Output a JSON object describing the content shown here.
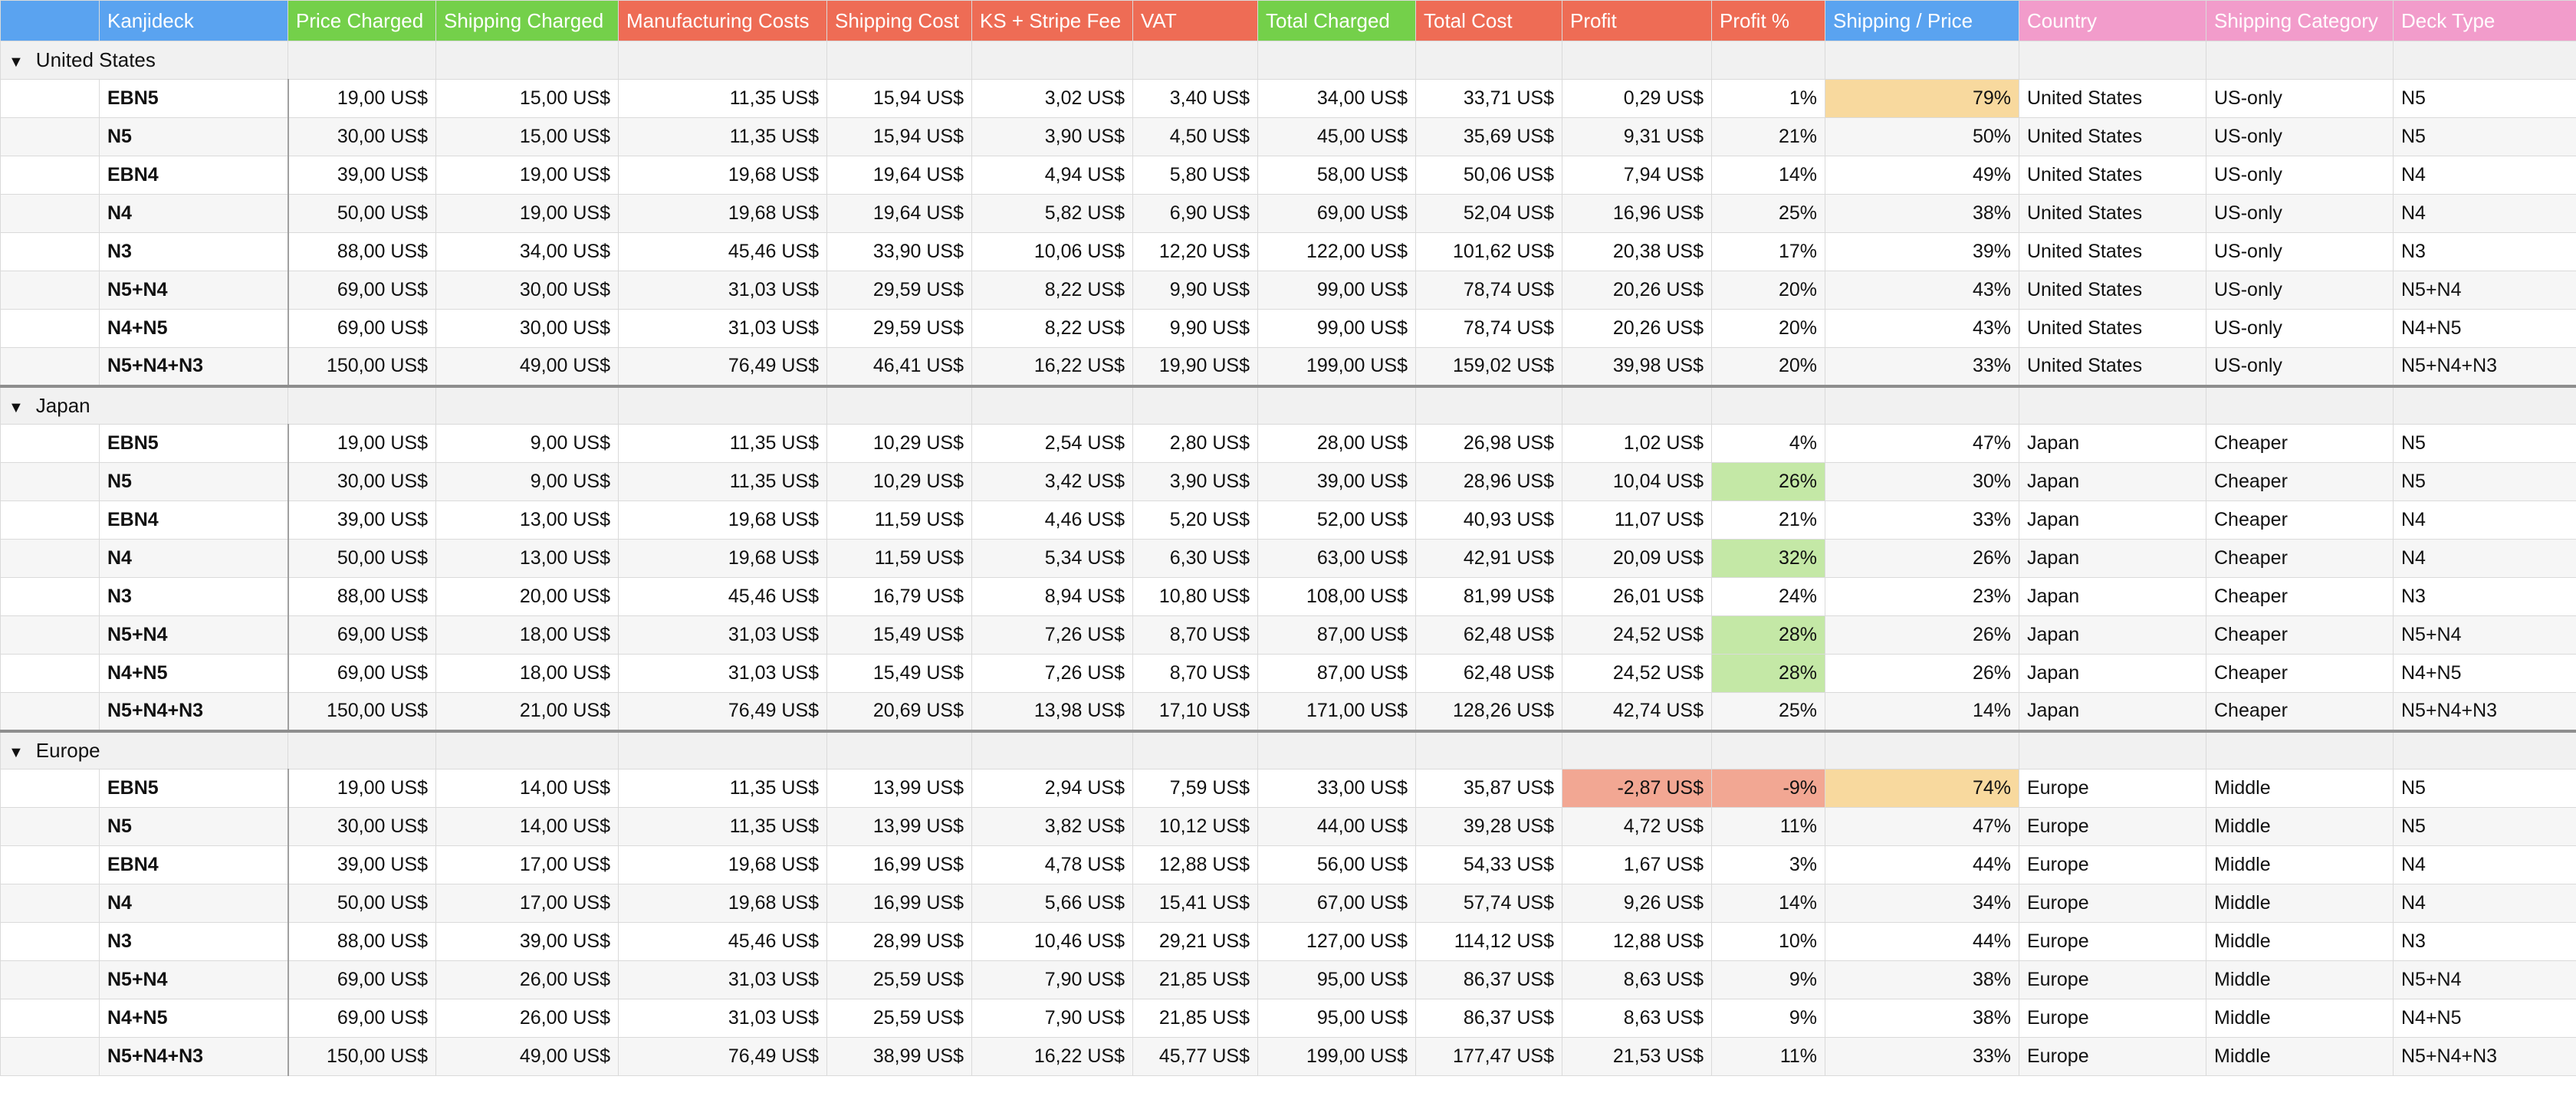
{
  "table": {
    "headers": [
      {
        "text": "Kanjideck",
        "color": "#5aa3f0"
      },
      {
        "text": "Price Charged",
        "color": "#74d04a"
      },
      {
        "text": "Shipping Charged",
        "color": "#74d04a"
      },
      {
        "text": "Manufacturing Costs",
        "color": "#ee6c55"
      },
      {
        "text": "Shipping Cost",
        "color": "#ee6c55"
      },
      {
        "text": "KS + Stripe Fee",
        "color": "#ee6c55"
      },
      {
        "text": "VAT",
        "color": "#ee6c55"
      },
      {
        "text": "Total Charged",
        "color": "#74d04a"
      },
      {
        "text": "Total Cost",
        "color": "#ee6c55"
      },
      {
        "text": "Profit",
        "color": "#ee6c55"
      },
      {
        "text": "Profit %",
        "color": "#ee6c55"
      },
      {
        "text": "Shipping / Price",
        "color": "#5aa3f0"
      },
      {
        "text": "Country",
        "color": "#f29ccb"
      },
      {
        "text": "Shipping Category",
        "color": "#f29ccb"
      },
      {
        "text": "Deck Type",
        "color": "#f29ccb"
      }
    ],
    "groups": [
      {
        "name": "United States",
        "rows": [
          [
            "EBN5",
            "19,00 US$",
            "15,00 US$",
            "11,35 US$",
            "15,94 US$",
            "3,02 US$",
            "3,40 US$",
            "34,00 US$",
            "33,71 US$",
            "0,29 US$",
            "1%",
            {
              "text": "79%",
              "fill": "#f8d99e"
            },
            "United States",
            "US-only",
            "N5"
          ],
          [
            "N5",
            "30,00 US$",
            "15,00 US$",
            "11,35 US$",
            "15,94 US$",
            "3,90 US$",
            "4,50 US$",
            "45,00 US$",
            "35,69 US$",
            "9,31 US$",
            "21%",
            "50%",
            "United States",
            "US-only",
            "N5"
          ],
          [
            "EBN4",
            "39,00 US$",
            "19,00 US$",
            "19,68 US$",
            "19,64 US$",
            "4,94 US$",
            "5,80 US$",
            "58,00 US$",
            "50,06 US$",
            "7,94 US$",
            "14%",
            "49%",
            "United States",
            "US-only",
            "N4"
          ],
          [
            "N4",
            "50,00 US$",
            "19,00 US$",
            "19,68 US$",
            "19,64 US$",
            "5,82 US$",
            "6,90 US$",
            "69,00 US$",
            "52,04 US$",
            "16,96 US$",
            "25%",
            "38%",
            "United States",
            "US-only",
            "N4"
          ],
          [
            "N3",
            "88,00 US$",
            "34,00 US$",
            "45,46 US$",
            "33,90 US$",
            "10,06 US$",
            "12,20 US$",
            "122,00 US$",
            "101,62 US$",
            "20,38 US$",
            "17%",
            "39%",
            "United States",
            "US-only",
            "N3"
          ],
          [
            "N5+N4",
            "69,00 US$",
            "30,00 US$",
            "31,03 US$",
            "29,59 US$",
            "8,22 US$",
            "9,90 US$",
            "99,00 US$",
            "78,74 US$",
            "20,26 US$",
            "20%",
            "43%",
            "United States",
            "US-only",
            "N5+N4"
          ],
          [
            "N4+N5",
            "69,00 US$",
            "30,00 US$",
            "31,03 US$",
            "29,59 US$",
            "8,22 US$",
            "9,90 US$",
            "99,00 US$",
            "78,74 US$",
            "20,26 US$",
            "20%",
            "43%",
            "United States",
            "US-only",
            "N4+N5"
          ],
          [
            "N5+N4+N3",
            "150,00 US$",
            "49,00 US$",
            "76,49 US$",
            "46,41 US$",
            "16,22 US$",
            "19,90 US$",
            "199,00 US$",
            "159,02 US$",
            "39,98 US$",
            "20%",
            "33%",
            "United States",
            "US-only",
            "N5+N4+N3"
          ]
        ]
      },
      {
        "name": "Japan",
        "rows": [
          [
            "EBN5",
            "19,00 US$",
            "9,00 US$",
            "11,35 US$",
            "10,29 US$",
            "2,54 US$",
            "2,80 US$",
            "28,00 US$",
            "26,98 US$",
            "1,02 US$",
            "4%",
            "47%",
            "Japan",
            "Cheaper",
            "N5"
          ],
          [
            "N5",
            "30,00 US$",
            "9,00 US$",
            "11,35 US$",
            "10,29 US$",
            "3,42 US$",
            "3,90 US$",
            "39,00 US$",
            "28,96 US$",
            "10,04 US$",
            {
              "text": "26%",
              "fill": "#c4e8a6"
            },
            "30%",
            "Japan",
            "Cheaper",
            "N5"
          ],
          [
            "EBN4",
            "39,00 US$",
            "13,00 US$",
            "19,68 US$",
            "11,59 US$",
            "4,46 US$",
            "5,20 US$",
            "52,00 US$",
            "40,93 US$",
            "11,07 US$",
            "21%",
            "33%",
            "Japan",
            "Cheaper",
            "N4"
          ],
          [
            "N4",
            "50,00 US$",
            "13,00 US$",
            "19,68 US$",
            "11,59 US$",
            "5,34 US$",
            "6,30 US$",
            "63,00 US$",
            "42,91 US$",
            "20,09 US$",
            {
              "text": "32%",
              "fill": "#c4e8a6"
            },
            "26%",
            "Japan",
            "Cheaper",
            "N4"
          ],
          [
            "N3",
            "88,00 US$",
            "20,00 US$",
            "45,46 US$",
            "16,79 US$",
            "8,94 US$",
            "10,80 US$",
            "108,00 US$",
            "81,99 US$",
            "26,01 US$",
            "24%",
            "23%",
            "Japan",
            "Cheaper",
            "N3"
          ],
          [
            "N5+N4",
            "69,00 US$",
            "18,00 US$",
            "31,03 US$",
            "15,49 US$",
            "7,26 US$",
            "8,70 US$",
            "87,00 US$",
            "62,48 US$",
            "24,52 US$",
            {
              "text": "28%",
              "fill": "#c4e8a6"
            },
            "26%",
            "Japan",
            "Cheaper",
            "N5+N4"
          ],
          [
            "N4+N5",
            "69,00 US$",
            "18,00 US$",
            "31,03 US$",
            "15,49 US$",
            "7,26 US$",
            "8,70 US$",
            "87,00 US$",
            "62,48 US$",
            "24,52 US$",
            {
              "text": "28%",
              "fill": "#c4e8a6"
            },
            "26%",
            "Japan",
            "Cheaper",
            "N4+N5"
          ],
          [
            "N5+N4+N3",
            "150,00 US$",
            "21,00 US$",
            "76,49 US$",
            "20,69 US$",
            "13,98 US$",
            "17,10 US$",
            "171,00 US$",
            "128,26 US$",
            "42,74 US$",
            "25%",
            "14%",
            "Japan",
            "Cheaper",
            "N5+N4+N3"
          ]
        ]
      },
      {
        "name": "Europe",
        "rows": [
          [
            "EBN5",
            "19,00 US$",
            "14,00 US$",
            "11,35 US$",
            "13,99 US$",
            "2,94 US$",
            "7,59 US$",
            "33,00 US$",
            "35,87 US$",
            {
              "text": "-2,87 US$",
              "fill": "#f2a793"
            },
            {
              "text": "-9%",
              "fill": "#f2a793"
            },
            {
              "text": "74%",
              "fill": "#f8d99e"
            },
            "Europe",
            "Middle",
            "N5"
          ],
          [
            "N5",
            "30,00 US$",
            "14,00 US$",
            "11,35 US$",
            "13,99 US$",
            "3,82 US$",
            "10,12 US$",
            "44,00 US$",
            "39,28 US$",
            "4,72 US$",
            "11%",
            "47%",
            "Europe",
            "Middle",
            "N5"
          ],
          [
            "EBN4",
            "39,00 US$",
            "17,00 US$",
            "19,68 US$",
            "16,99 US$",
            "4,78 US$",
            "12,88 US$",
            "56,00 US$",
            "54,33 US$",
            "1,67 US$",
            "3%",
            "44%",
            "Europe",
            "Middle",
            "N4"
          ],
          [
            "N4",
            "50,00 US$",
            "17,00 US$",
            "19,68 US$",
            "16,99 US$",
            "5,66 US$",
            "15,41 US$",
            "67,00 US$",
            "57,74 US$",
            "9,26 US$",
            "14%",
            "34%",
            "Europe",
            "Middle",
            "N4"
          ],
          [
            "N3",
            "88,00 US$",
            "39,00 US$",
            "45,46 US$",
            "28,99 US$",
            "10,46 US$",
            "29,21 US$",
            "127,00 US$",
            "114,12 US$",
            "12,88 US$",
            "10%",
            "44%",
            "Europe",
            "Middle",
            "N3"
          ],
          [
            "N5+N4",
            "69,00 US$",
            "26,00 US$",
            "31,03 US$",
            "25,59 US$",
            "7,90 US$",
            "21,85 US$",
            "95,00 US$",
            "86,37 US$",
            "8,63 US$",
            "9%",
            "38%",
            "Europe",
            "Middle",
            "N5+N4"
          ],
          [
            "N4+N5",
            "69,00 US$",
            "26,00 US$",
            "31,03 US$",
            "25,59 US$",
            "7,90 US$",
            "21,85 US$",
            "95,00 US$",
            "86,37 US$",
            "8,63 US$",
            "9%",
            "38%",
            "Europe",
            "Middle",
            "N4+N5"
          ],
          [
            "N5+N4+N3",
            "150,00 US$",
            "49,00 US$",
            "76,49 US$",
            "38,99 US$",
            "16,22 US$",
            "45,77 US$",
            "199,00 US$",
            "177,47 US$",
            "21,53 US$",
            "11%",
            "33%",
            "Europe",
            "Middle",
            "N5+N4+N3"
          ]
        ]
      }
    ]
  }
}
